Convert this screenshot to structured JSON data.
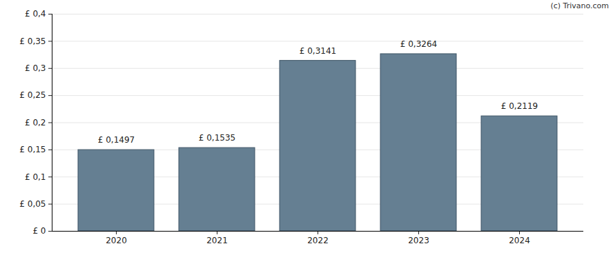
{
  "chart_data": {
    "type": "bar",
    "caption": "(c) Trivano.com",
    "categories": [
      "2020",
      "2021",
      "2022",
      "2023",
      "2024"
    ],
    "values": [
      0.1497,
      0.1535,
      0.3141,
      0.3264,
      0.2119
    ],
    "value_labels": [
      "£ 0,1497",
      "£ 0,1535",
      "£ 0,3141",
      "£ 0,3264",
      "£ 0,2119"
    ],
    "data_labels": true,
    "color": "#657f92",
    "ylim": [
      0,
      0.4
    ],
    "yticks": [
      {
        "value": 0,
        "label": "£ 0"
      },
      {
        "value": 0.05,
        "label": "£ 0,05"
      },
      {
        "value": 0.1,
        "label": "£ 0,1"
      },
      {
        "value": 0.15,
        "label": "£ 0,15"
      },
      {
        "value": 0.2,
        "label": "£ 0,2"
      },
      {
        "value": 0.25,
        "label": "£ 0,25"
      },
      {
        "value": 0.3,
        "label": "£ 0,3"
      },
      {
        "value": 0.35,
        "label": "£ 0,35"
      },
      {
        "value": 0.4,
        "label": "£ 0,4"
      }
    ],
    "grid": true
  }
}
